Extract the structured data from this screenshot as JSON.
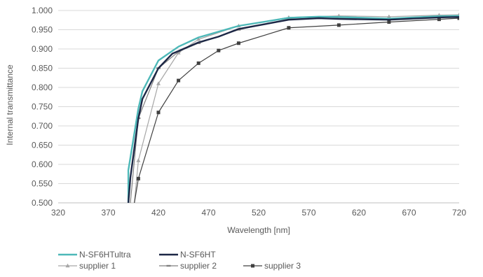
{
  "chart_data": {
    "type": "line",
    "title": "",
    "xlabel": "Wavelength [nm]",
    "ylabel": "Internal transmittance",
    "xlim": [
      320,
      720
    ],
    "ylim": [
      0.5,
      1.0
    ],
    "x_ticks": [
      "320",
      "370",
      "420",
      "470",
      "520",
      "570",
      "620",
      "670",
      "720"
    ],
    "y_ticks": [
      "0.500",
      "0.550",
      "0.600",
      "0.650",
      "0.700",
      "0.750",
      "0.800",
      "0.850",
      "0.900",
      "0.950",
      "1.000"
    ],
    "grid": "horizontal",
    "legend_position": "bottom",
    "series": [
      {
        "name": "N-SF6HTultra",
        "color": "#4db8b8",
        "marker": "none",
        "points": [
          [
            390,
            0.5
          ],
          [
            390,
            0.585
          ],
          [
            400,
            0.745
          ],
          [
            404,
            0.79
          ],
          [
            420,
            0.87
          ],
          [
            440,
            0.906
          ],
          [
            460,
            0.93
          ],
          [
            480,
            0.945
          ],
          [
            500,
            0.96
          ],
          [
            550,
            0.981
          ],
          [
            580,
            0.984
          ],
          [
            600,
            0.983
          ],
          [
            650,
            0.979
          ],
          [
            700,
            0.985
          ],
          [
            720,
            0.986
          ]
        ]
      },
      {
        "name": "N-SF6HT",
        "color": "#1c2746",
        "marker": "none",
        "points": [
          [
            390,
            0.5
          ],
          [
            392,
            0.565
          ],
          [
            400,
            0.72
          ],
          [
            404,
            0.77
          ],
          [
            420,
            0.85
          ],
          [
            434,
            0.888
          ],
          [
            460,
            0.917
          ],
          [
            480,
            0.932
          ],
          [
            500,
            0.952
          ],
          [
            550,
            0.976
          ],
          [
            580,
            0.98
          ],
          [
            600,
            0.978
          ],
          [
            650,
            0.976
          ],
          [
            700,
            0.982
          ],
          [
            720,
            0.983
          ]
        ]
      },
      {
        "name": "supplier 1",
        "color": "#a6a6a6",
        "marker": "triangle",
        "points": [
          [
            396,
            0.5
          ],
          [
            400,
            0.61
          ],
          [
            420,
            0.81
          ],
          [
            440,
            0.89
          ],
          [
            460,
            0.925
          ],
          [
            500,
            0.96
          ],
          [
            550,
            0.982
          ],
          [
            600,
            0.986
          ],
          [
            650,
            0.984
          ],
          [
            700,
            0.988
          ],
          [
            720,
            0.989
          ]
        ]
      },
      {
        "name": "supplier 2",
        "color": "#7f7f7f",
        "marker": "dash",
        "points": [
          [
            392,
            0.5
          ],
          [
            400,
            0.72
          ],
          [
            420,
            0.85
          ],
          [
            440,
            0.893
          ],
          [
            460,
            0.915
          ],
          [
            500,
            0.95
          ],
          [
            550,
            0.978
          ],
          [
            600,
            0.98
          ],
          [
            650,
            0.977
          ],
          [
            700,
            0.983
          ],
          [
            720,
            0.984
          ]
        ]
      },
      {
        "name": "supplier 3",
        "color": "#404040",
        "marker": "square",
        "points": [
          [
            396,
            0.5
          ],
          [
            400,
            0.563
          ],
          [
            420,
            0.735
          ],
          [
            440,
            0.818
          ],
          [
            460,
            0.863
          ],
          [
            480,
            0.896
          ],
          [
            500,
            0.915
          ],
          [
            550,
            0.955
          ],
          [
            600,
            0.962
          ],
          [
            650,
            0.97
          ],
          [
            700,
            0.977
          ],
          [
            720,
            0.98
          ]
        ]
      }
    ]
  }
}
